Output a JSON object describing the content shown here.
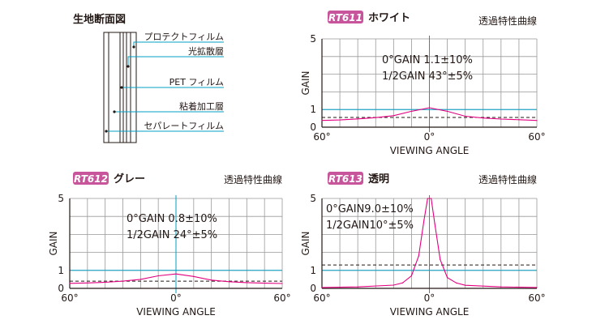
{
  "cross_section": {
    "title": "生地断面図",
    "layers": [
      "プロテクトフィルム",
      "光拡散層",
      "PET フィルム",
      "粘着加工層",
      "セパレートフィルム"
    ]
  },
  "colors": {
    "grid": "#999999",
    "axis": "#231815",
    "reference": "#00a0c6",
    "curve": "#e4007f",
    "badge": "#c8559b"
  },
  "chart_data": [
    {
      "type": "line",
      "code": "RT611",
      "name": "ホワイト",
      "right_title": "透過特性曲線",
      "ylabel": "GAIN",
      "xlabel": "VIEWING  ANGLE",
      "x_tick_labels": [
        "60°",
        "0°",
        "60°"
      ],
      "y_tick_labels": [
        "5",
        "1",
        "0"
      ],
      "xlim": [
        -60,
        60
      ],
      "ylim": [
        0,
        5
      ],
      "grid": true,
      "annotations": [
        "0°GAIN 1.1±10%",
        "1/2GAIN 43°±5%"
      ],
      "reference_lines": {
        "solid": 1.0,
        "dashed": 0.55
      },
      "x": [
        -60,
        -50,
        -40,
        -30,
        -20,
        -10,
        0,
        10,
        20,
        30,
        40,
        50,
        60
      ],
      "y": [
        0.38,
        0.41,
        0.47,
        0.54,
        0.65,
        0.9,
        1.1,
        0.9,
        0.62,
        0.52,
        0.46,
        0.42,
        0.38
      ]
    },
    {
      "type": "line",
      "code": "RT612",
      "name": "グレー",
      "right_title": "透過特性曲線",
      "ylabel": "GAIN",
      "xlabel": "VIEWING  ANGLE",
      "x_tick_labels": [
        "60°",
        "0°",
        "60°"
      ],
      "y_tick_labels": [
        "5",
        "1",
        "0"
      ],
      "xlim": [
        -60,
        60
      ],
      "ylim": [
        0,
        5
      ],
      "grid": true,
      "annotations": [
        "0°GAIN 0.8±10%",
        "1/2GAIN 24°±5%"
      ],
      "reference_lines": {
        "solid": 1.0,
        "dashed": 0.4
      },
      "x": [
        -60,
        -50,
        -40,
        -30,
        -20,
        -10,
        0,
        10,
        20,
        30,
        40,
        50,
        60
      ],
      "y": [
        0.28,
        0.3,
        0.34,
        0.4,
        0.5,
        0.7,
        0.8,
        0.66,
        0.46,
        0.37,
        0.32,
        0.29,
        0.27
      ]
    },
    {
      "type": "line",
      "code": "RT613",
      "name": "透明",
      "right_title": "透過特性曲線",
      "ylabel": "GAIN",
      "xlabel": "VIEWING  ANGLE",
      "x_tick_labels": [
        "60°",
        "0°",
        "60°"
      ],
      "y_tick_labels": [
        "5",
        "1",
        "0"
      ],
      "xlim": [
        -60,
        60
      ],
      "ylim": [
        0,
        5
      ],
      "grid": true,
      "annotations": [
        "0°GAIN9.0±10%",
        "1/2GAIN10°±5%"
      ],
      "reference_lines": {
        "solid": 1.0,
        "dashed": 1.3
      },
      "x": [
        -60,
        -40,
        -20,
        -15,
        -10,
        -6,
        -3,
        -1,
        0,
        1,
        3,
        6,
        10,
        15,
        20,
        40,
        60
      ],
      "y": [
        0.05,
        0.08,
        0.18,
        0.3,
        0.7,
        1.8,
        3.8,
        5.0,
        5.0,
        5.0,
        3.6,
        1.6,
        0.6,
        0.3,
        0.17,
        0.08,
        0.05
      ]
    }
  ]
}
